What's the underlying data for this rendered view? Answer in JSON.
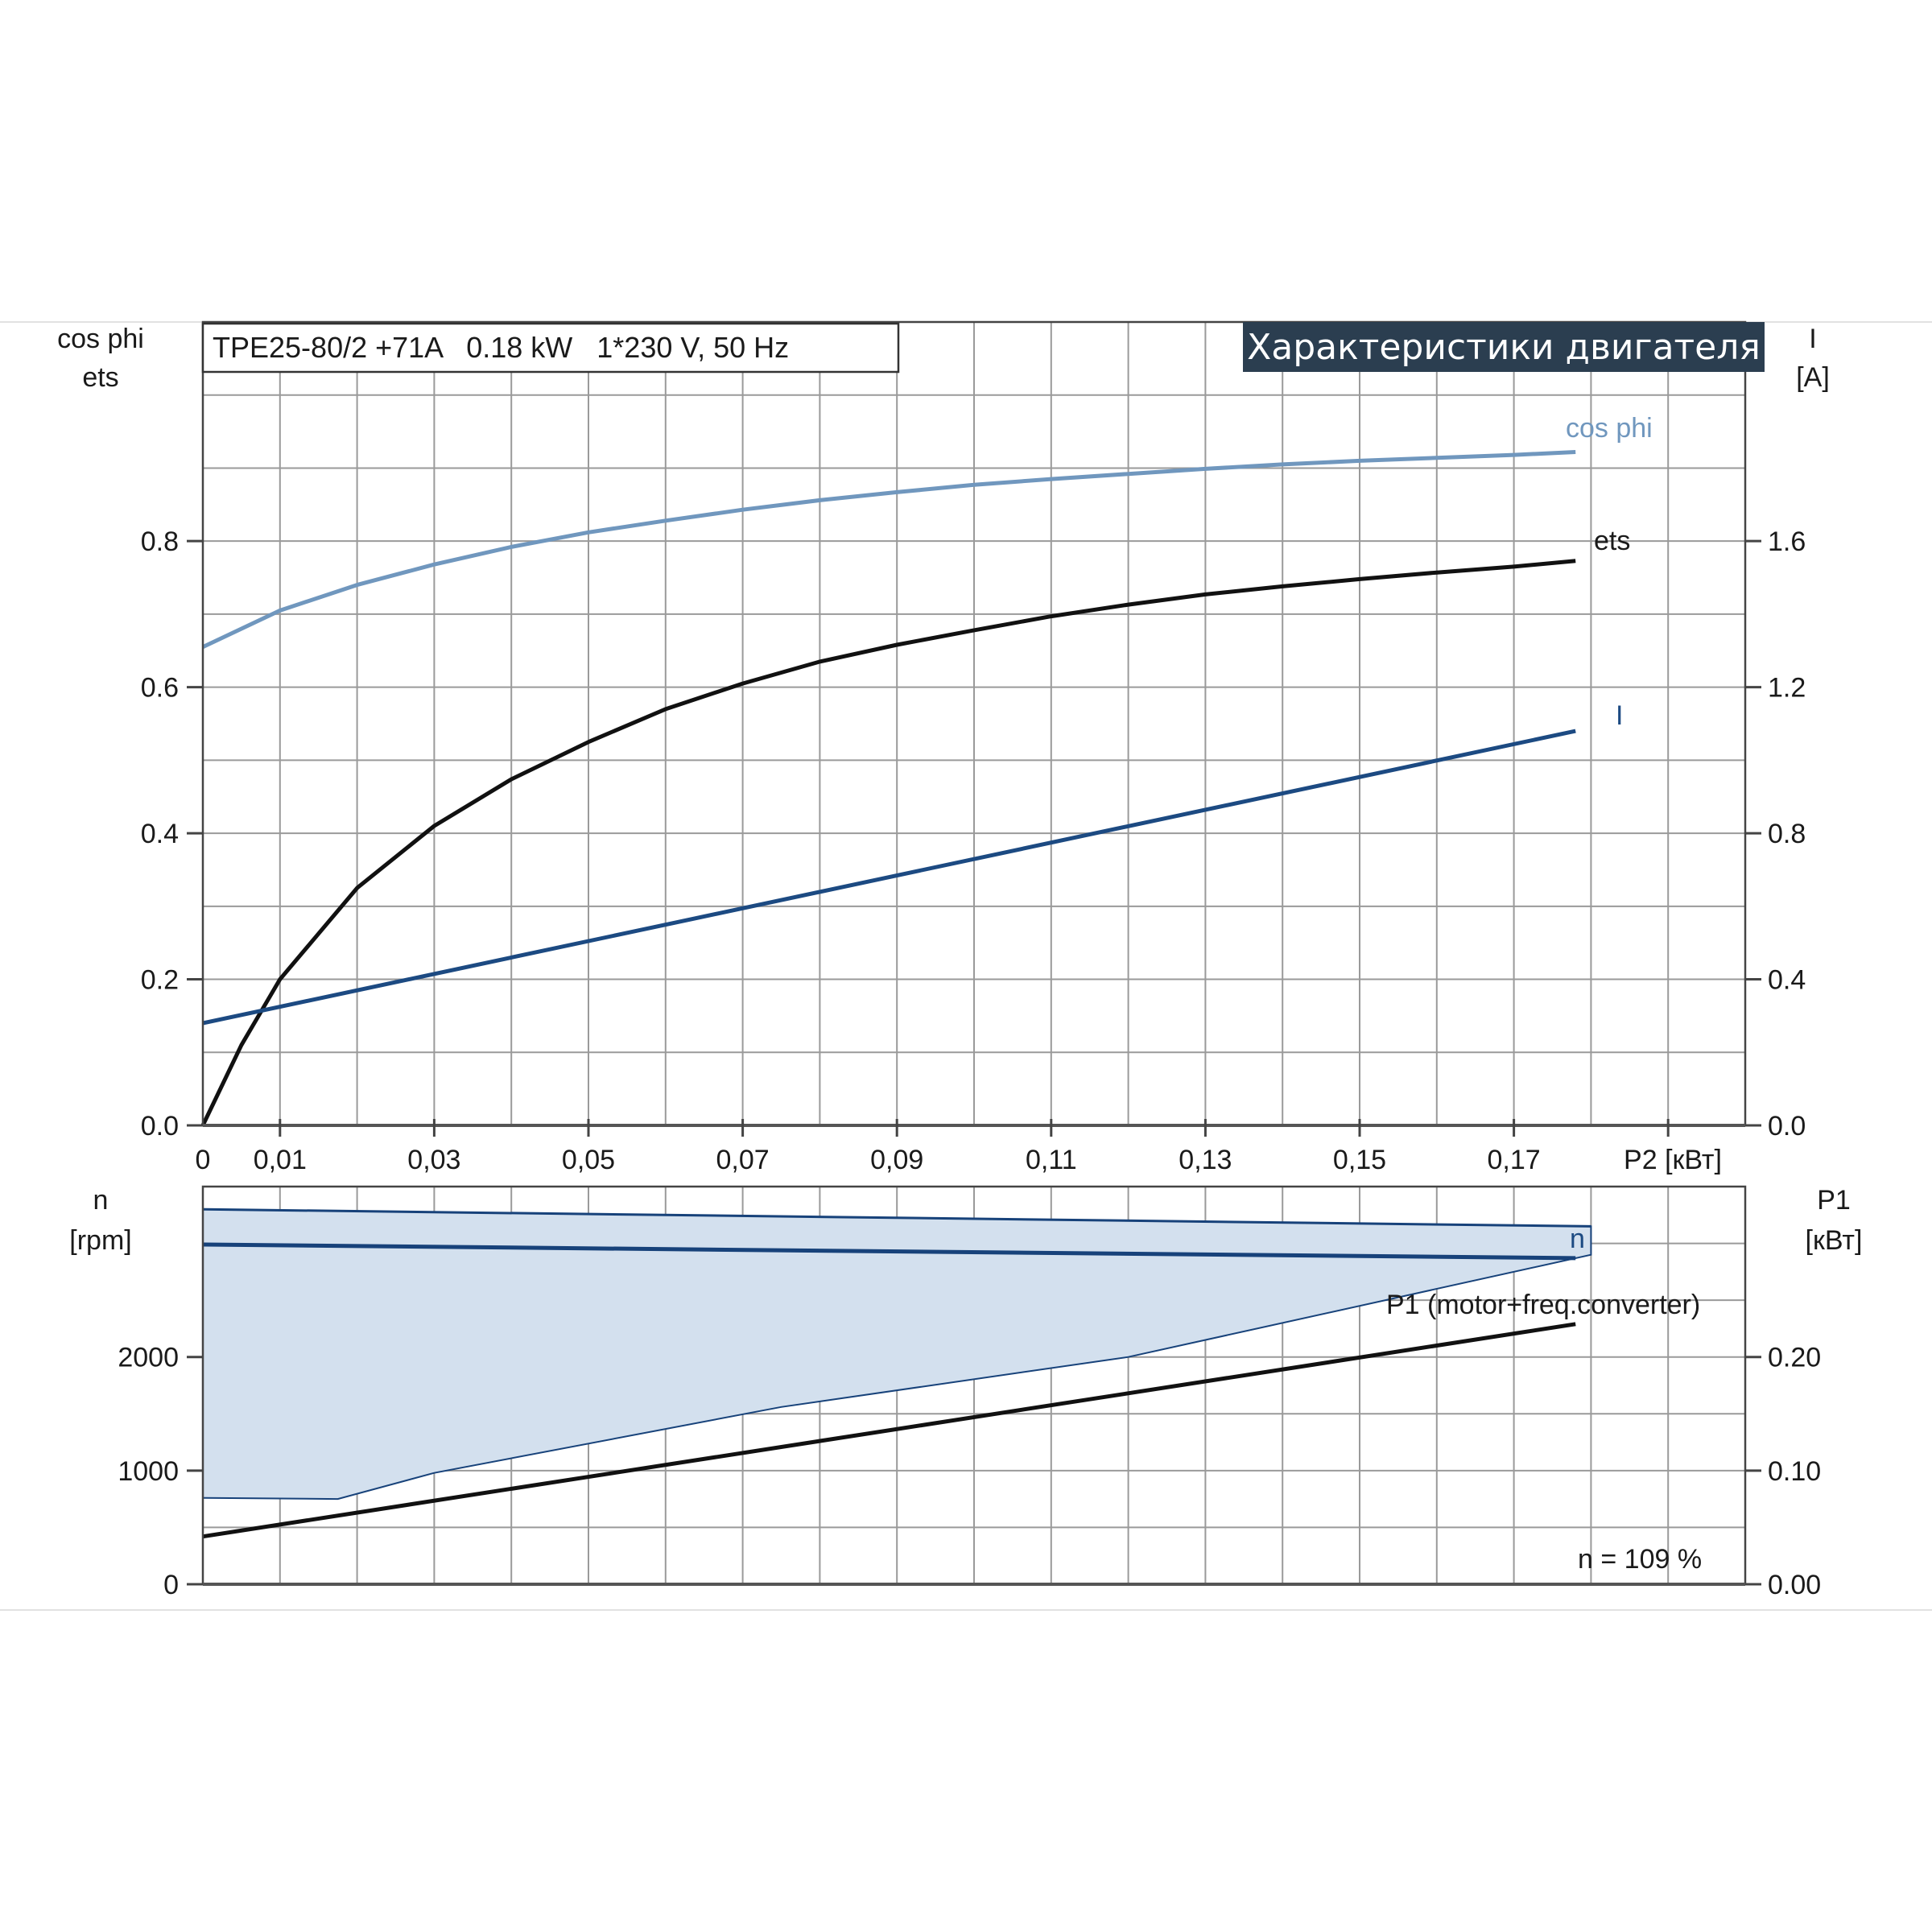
{
  "header": {
    "title": "Характеристики двигателя",
    "model_box": "TPE25-80/2 +71A   0.18 kW   1*230 V, 50 Hz"
  },
  "colors": {
    "cos_phi": "#7097be",
    "ets": "#111111",
    "current": "#1c4a82",
    "speed_line": "#17427a",
    "speed_band_fill": "#d3e0ee",
    "p1": "#111111"
  },
  "chart_data": [
    {
      "type": "line",
      "name": "upper",
      "x_axis": {
        "label": "P2 [кВт]",
        "ticks": [
          "0",
          "0,01",
          "0,03",
          "0,05",
          "0,07",
          "0,09",
          "0,11",
          "0,13",
          "0,15",
          "0,17"
        ],
        "tick_values": [
          0,
          0.01,
          0.03,
          0.05,
          0.07,
          0.09,
          0.11,
          0.13,
          0.15,
          0.17
        ],
        "range": [
          0,
          0.2
        ]
      },
      "y_left": {
        "label_line1": "cos phi",
        "label_line2": "ets",
        "ticks": [
          "0.0",
          "0.2",
          "0.4",
          "0.6",
          "0.8"
        ],
        "tick_values": [
          0,
          0.2,
          0.4,
          0.6,
          0.8
        ],
        "range": [
          0,
          1.1
        ]
      },
      "y_right": {
        "label_line1": "I",
        "label_line2": "[A]",
        "ticks": [
          "0.0",
          "0.4",
          "0.8",
          "1.2",
          "1.6"
        ],
        "tick_values": [
          0,
          0.4,
          0.8,
          1.2,
          1.6
        ],
        "range": [
          0,
          2.2
        ]
      },
      "grid": true,
      "series": [
        {
          "name": "cos phi",
          "axis": "left",
          "x": [
            0,
            0.01,
            0.02,
            0.03,
            0.04,
            0.05,
            0.06,
            0.07,
            0.08,
            0.09,
            0.1,
            0.11,
            0.12,
            0.13,
            0.14,
            0.15,
            0.16,
            0.17,
            0.178
          ],
          "y": [
            0.655,
            0.705,
            0.74,
            0.768,
            0.792,
            0.812,
            0.828,
            0.843,
            0.856,
            0.867,
            0.877,
            0.885,
            0.892,
            0.899,
            0.905,
            0.91,
            0.914,
            0.918,
            0.922
          ]
        },
        {
          "name": "ets",
          "axis": "left",
          "x": [
            0,
            0.005,
            0.01,
            0.02,
            0.03,
            0.04,
            0.05,
            0.06,
            0.07,
            0.08,
            0.09,
            0.1,
            0.11,
            0.12,
            0.13,
            0.14,
            0.15,
            0.16,
            0.17,
            0.178
          ],
          "y": [
            0,
            0.11,
            0.2,
            0.325,
            0.41,
            0.474,
            0.525,
            0.57,
            0.605,
            0.635,
            0.658,
            0.678,
            0.697,
            0.713,
            0.727,
            0.738,
            0.748,
            0.757,
            0.765,
            0.773
          ]
        },
        {
          "name": "I",
          "axis": "right",
          "x": [
            0,
            0.178
          ],
          "y": [
            0.28,
            1.08
          ]
        }
      ]
    },
    {
      "type": "line",
      "name": "lower",
      "y_left": {
        "label_line1": "n",
        "label_line2": "[rpm]",
        "ticks": [
          "0",
          "1000",
          "2000"
        ],
        "tick_values": [
          0,
          1000,
          2000
        ],
        "range": [
          0,
          3500
        ]
      },
      "y_right": {
        "label_line1": "P1",
        "label_line2": "[кВт]",
        "ticks": [
          "0.00",
          "0.10",
          "0.20"
        ],
        "tick_values": [
          0,
          0.1,
          0.2
        ],
        "range": [
          0,
          0.35
        ]
      },
      "grid": true,
      "speed_band": {
        "x_top": [
          0,
          0.18
        ],
        "top": [
          3300,
          3150
        ],
        "x_bottom": [
          0,
          0.0175,
          0.03,
          0.075,
          0.12,
          0.18
        ],
        "bottom": [
          760,
          750,
          980,
          1560,
          2000,
          2900
        ]
      },
      "series": [
        {
          "name": "n",
          "axis": "left",
          "x": [
            0,
            0.178
          ],
          "y": [
            2990,
            2870
          ]
        },
        {
          "name": "P1 (motor+freq.converter)",
          "axis": "right",
          "x": [
            0,
            0.178
          ],
          "y": [
            0.042,
            0.229
          ]
        }
      ],
      "annotation": "n = 109 %"
    }
  ]
}
